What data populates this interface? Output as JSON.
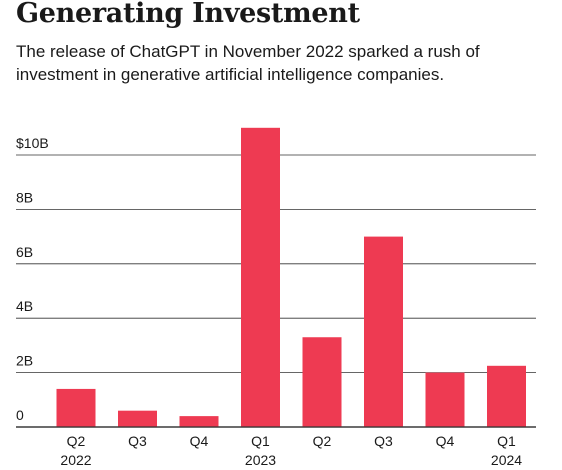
{
  "title": "Generating Investment",
  "subtitle": "The release of ChatGPT in November 2022 sparked a rush of investment in generative artificial intelligence companies.",
  "colors": {
    "bar": "#ee3a52",
    "grid": "#333333"
  },
  "chart_data": {
    "type": "bar",
    "categories": [
      "Q2\n2022",
      "Q3",
      "Q4",
      "Q1\n2023",
      "Q2",
      "Q3",
      "Q4",
      "Q1\n2024"
    ],
    "values": [
      1.4,
      0.6,
      0.4,
      11.0,
      3.3,
      7.0,
      2.0,
      2.25
    ],
    "ylim": [
      0,
      10
    ],
    "yticks": [
      0,
      2,
      4,
      6,
      8,
      10
    ],
    "ytick_labels": [
      "0",
      "2B",
      "4B",
      "6B",
      "8B",
      "$10B"
    ],
    "grid": true
  }
}
